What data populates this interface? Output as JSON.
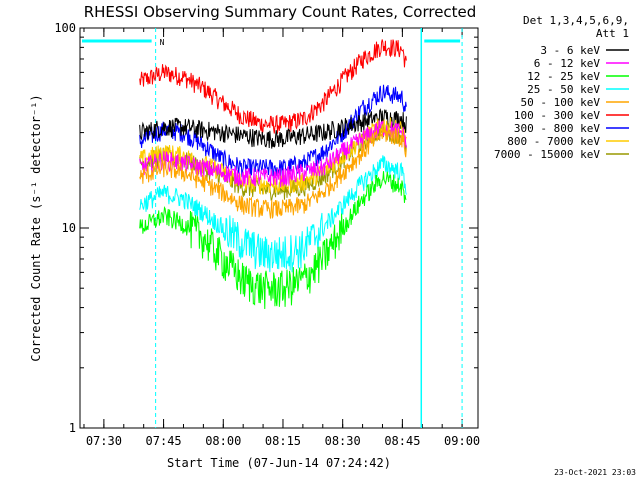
{
  "chart_data": {
    "type": "line",
    "title": "RHESSI Observing Summary Count Rates, Corrected",
    "xlabel": "Start Time (07-Jun-14 07:24:42)",
    "ylabel": "Corrected Count Rate (s⁻¹ detector⁻¹)",
    "y_scale": "log",
    "ylim": [
      1,
      100
    ],
    "xlim": [
      "07:24",
      "09:04"
    ],
    "x_ticks": [
      "07:30",
      "07:45",
      "08:00",
      "08:15",
      "08:30",
      "08:45",
      "09:00"
    ],
    "y_ticks": [
      "1",
      "10",
      "100"
    ],
    "legend_header": [
      "Det 1,3,4,5,6,9,",
      "Att 1"
    ],
    "legend_position": "top-right",
    "annotations": {
      "night_marker": "N",
      "footer_date": "23-Oct-2021 23:03"
    },
    "x": [
      "07:39",
      "07:45",
      "07:50",
      "07:55",
      "08:00",
      "08:05",
      "08:10",
      "08:15",
      "08:20",
      "08:25",
      "08:30",
      "08:35",
      "08:40",
      "08:45",
      "08:46"
    ],
    "series": [
      {
        "name": "3 - 6 keV",
        "color": "#000000",
        "values": [
          30,
          32,
          32,
          31,
          30,
          29,
          28,
          28,
          29,
          30,
          32,
          34,
          36,
          35,
          33
        ]
      },
      {
        "name": "6 - 12 keV",
        "color": "#ff00ff",
        "values": [
          20,
          22,
          21,
          20,
          19,
          18,
          18,
          18,
          19,
          20,
          24,
          28,
          32,
          30,
          26
        ]
      },
      {
        "name": "12 - 25 keV",
        "color": "#00ff00",
        "values": [
          10,
          11.5,
          10.5,
          9,
          7,
          5.5,
          5,
          5,
          5.5,
          7,
          10,
          14,
          18,
          16,
          13
        ]
      },
      {
        "name": "25 - 50 keV",
        "color": "#00ffff",
        "values": [
          13,
          15,
          14,
          12,
          10,
          8.5,
          7.5,
          7.5,
          8,
          10,
          13,
          17,
          21,
          19,
          16
        ]
      },
      {
        "name": "50 - 100 keV",
        "color": "#ffa500",
        "values": [
          18,
          20,
          19,
          17,
          15,
          13,
          12.5,
          12.5,
          13,
          15,
          19,
          24,
          30,
          28,
          24
        ]
      },
      {
        "name": "100 - 300 keV",
        "color": "#ff0000",
        "values": [
          54,
          60,
          57,
          50,
          42,
          36,
          33,
          33,
          35,
          42,
          55,
          70,
          82,
          78,
          65
        ]
      },
      {
        "name": "300 - 800 keV",
        "color": "#0000ff",
        "values": [
          27,
          31,
          30,
          26,
          22,
          20,
          20,
          20,
          21,
          24,
          30,
          40,
          48,
          45,
          38
        ]
      },
      {
        "name": "800 - 7000 keV",
        "color": "#ffcc00",
        "values": [
          22,
          24,
          23,
          21,
          19,
          17,
          16.5,
          16.5,
          17,
          19,
          23,
          28,
          33,
          31,
          27
        ]
      },
      {
        "name": "7000 - 15000 keV",
        "color": "#999900",
        "values": [
          21,
          23,
          22,
          20,
          18,
          16,
          15.5,
          15.5,
          16,
          18,
          22,
          27,
          31,
          29,
          25
        ]
      }
    ]
  }
}
